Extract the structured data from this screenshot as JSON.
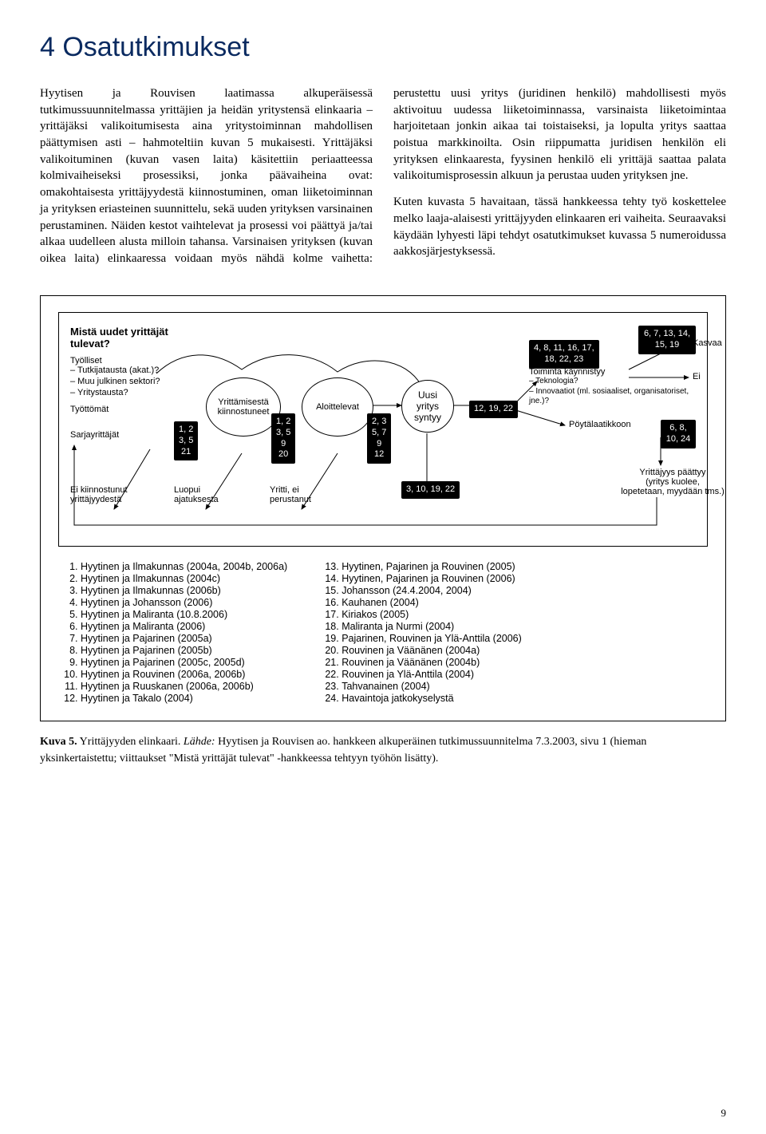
{
  "chapter_title": "4  Osatutkimukset",
  "body_para_1": "Hyytisen ja Rouvisen laatimassa alkuperäisessä tutkimussuunnitelmassa yrittäjien ja heidän yritystensä elinkaaria – yrittäjäksi valikoitumisesta aina yritystoiminnan mahdollisen päättymisen asti – hahmoteltiin kuvan 5 mukaisesti. Yrittäjäksi valikoituminen (kuvan vasen laita) käsitettiin periaatteessa kolmivaiheiseksi prosessiksi, jonka päävaiheina ovat: omakohtaisesta yrittäjyydestä kiinnostuminen, oman liiketoiminnan ja yrityksen eriasteinen suunnittelu, sekä uuden yrityksen varsinainen perustaminen. Näiden kestot vaihtelevat ja prosessi voi päättyä ja/tai alkaa uudelleen alusta milloin tahansa. Varsinaisen yrityksen (kuvan oikea laita) elinkaaressa voidaan myös nähdä kolme vaihetta: perustettu uusi yritys (juridinen henkilö) mahdollisesti myös aktivoituu uudessa liiketoiminnassa, varsinaista liiketoimintaa harjoitetaan jonkin aikaa tai toistaiseksi, ja lopulta yritys saattaa poistua markkinoilta. Osin riippumatta juridisen henkilön eli yrityksen elinkaaresta, fyysinen henkilö eli yrittäjä saattaa palata valikoitumisprosessin alkuun ja perustaa uuden yrityksen jne.",
  "body_para_2": "Kuten kuvasta 5 havaitaan, tässä hankkeessa tehty työ koskettelee melko laaja-alaisesti yrittäjyyden elinkaaren eri vaiheita. Seuraavaksi käydään lyhyesti läpi tehdyt osatutkimukset kuvassa 5 numeroidussa aakkosjärjestyksessä.",
  "diagram": {
    "question": "Mistä uudet yrittäjät tulevat?",
    "tyolliset": "Työlliset",
    "tyolliset_lines": "– Tutkijatausta (akat.)?\n– Muu julkinen sektori?\n– Yritystausta?",
    "tyottomat": "Työttömät",
    "sarja": "Sarjayrittäjät",
    "ei_kiinnostunut": "Ei kiinnostunut yrittäjyydestä",
    "tag1": "1, 2\n3, 5\n21",
    "kiinnostuneet": "Yrittämisestä kiinnostuneet",
    "luopui": "Luopui ajatuksesta",
    "tag2": "1, 2\n3, 5\n9\n20",
    "aloittelevat": "Aloittelevat",
    "yritti": "Yritti, ei perustanut",
    "tag3": "2, 3\n5, 7\n9\n12",
    "uusi": "Uusi\nyritys\nsyntyy",
    "tag4": "12, 19, 22",
    "tag_bottom": "3, 10, 19, 22",
    "tag5": "4, 8, 11, 16, 17,\n18, 22, 23",
    "toiminta": "Toiminta käynnistyy",
    "toiminta_lines": "– Teknologia?\n– Innovaatiot (ml. sosiaaliset, organisatoriset, jne.)?",
    "poyta": "Pöytälaatikkoon",
    "tag6": "6, 7, 13, 14, 15, 19",
    "kasvaa": "Kasvaa",
    "ei": "Ei",
    "tag7": "6, 8, 10, 24",
    "paattyy": "Yrittäjyys päättyy\n(yritys kuolee,\nlopetetaan, myydään tms.)"
  },
  "refs_left": [
    "Hyytinen ja Ilmakunnas (2004a, 2004b, 2006a)",
    "Hyytinen ja Ilmakunnas (2004c)",
    "Hyytinen ja Ilmakunnas (2006b)",
    "Hyytinen ja Johansson (2006)",
    "Hyytinen ja Maliranta (10.8.2006)",
    "Hyytinen ja Maliranta (2006)",
    "Hyytinen ja Pajarinen (2005a)",
    "Hyytinen ja Pajarinen (2005b)",
    "Hyytinen ja Pajarinen (2005c, 2005d)",
    "Hyytinen ja Rouvinen (2006a, 2006b)",
    "Hyytinen ja Ruuskanen (2006a, 2006b)",
    "Hyytinen ja Takalo (2004)"
  ],
  "refs_right": [
    "Hyytinen, Pajarinen ja Rouvinen (2005)",
    "Hyytinen, Pajarinen ja Rouvinen (2006)",
    "Johansson (24.4.2004, 2004)",
    "Kauhanen (2004)",
    "Kiriakos (2005)",
    "Maliranta ja Nurmi (2004)",
    "Pajarinen, Rouvinen ja Ylä-Anttila (2006)",
    "Rouvinen ja Väänänen (2004a)",
    "Rouvinen ja Väänänen (2004b)",
    "Rouvinen ja Ylä-Anttila (2004)",
    "Tahvanainen (2004)",
    "Havaintoja jatkokyselystä"
  ],
  "caption_bold": "Kuva 5.",
  "caption_plain": "  Yrittäjyyden elinkaari.",
  "caption_italic": " Lähde:",
  "caption_rest": " Hyytisen ja Rouvisen ao. hankkeen alkuperäinen tutkimussuunnitelma 7.3.2003, sivu 1 (hieman yksinkertaistettu; viittaukset \"Mistä yrittäjät tulevat\" -hankkeessa tehtyyn työhön lisätty).",
  "page_number": "9"
}
